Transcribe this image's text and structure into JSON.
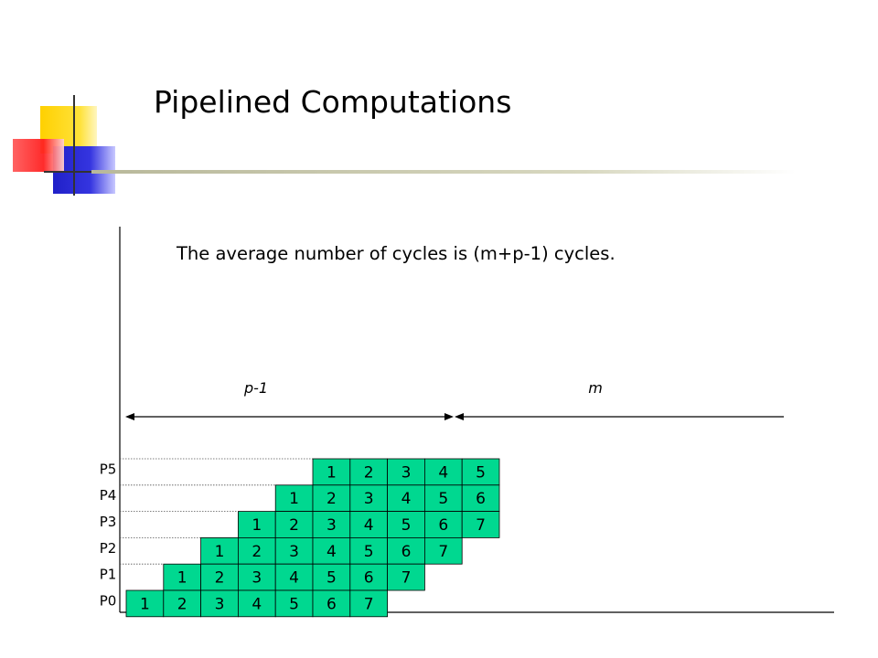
{
  "slide": {
    "title": "Pipelined Computations",
    "subtitle": "The average number of cycles is (m+p-1) cycles."
  },
  "colors": {
    "cell_fill": "#00d890",
    "cell_border": "#000000",
    "deco_yellow": "#ffd700",
    "deco_red": "#ff3333",
    "deco_blue": "#2b2bd6",
    "rule_line": "#c8c8a8"
  },
  "icons": [
    "decorative-squares-logo"
  ],
  "diagram": {
    "span_labels": {
      "left": "p-1",
      "right": "m"
    },
    "processors": [
      {
        "label": "P5",
        "cells": [
          "1",
          "2",
          "3",
          "4",
          "5"
        ]
      },
      {
        "label": "P4",
        "cells": [
          "1",
          "2",
          "3",
          "4",
          "5",
          "6"
        ]
      },
      {
        "label": "P3",
        "cells": [
          "1",
          "2",
          "3",
          "4",
          "5",
          "6",
          "7"
        ]
      },
      {
        "label": "P2",
        "cells": [
          "1",
          "2",
          "3",
          "4",
          "5",
          "6",
          "7"
        ]
      },
      {
        "label": "P1",
        "cells": [
          "1",
          "2",
          "3",
          "4",
          "5",
          "6",
          "7"
        ]
      },
      {
        "label": "P0",
        "cells": [
          "1",
          "2",
          "3",
          "4",
          "5",
          "6",
          "7"
        ]
      }
    ]
  }
}
